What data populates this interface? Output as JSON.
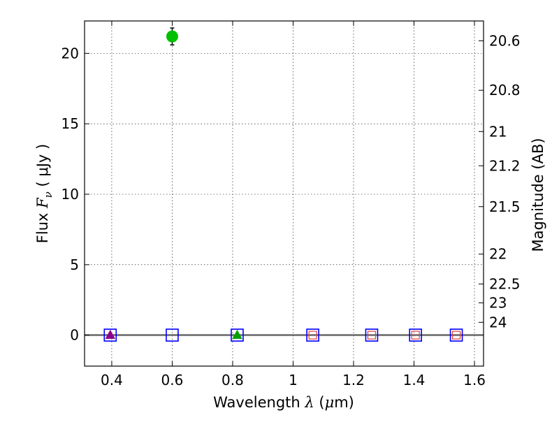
{
  "chart_data": {
    "type": "scatter",
    "title": "",
    "xlabel": {
      "prefix": "Wavelength  ",
      "symbol": "λ",
      "unit_open": " (",
      "unit_mu": "μ",
      "unit_rest": "m)"
    },
    "ylabel": {
      "prefix": "Flux  ",
      "symbol": "F",
      "subscript": "ν",
      "unit": "  ( μJy )"
    },
    "y2label": "Magnitude (AB)",
    "xlim": [
      0.31,
      1.63
    ],
    "ylim": [
      -2.2,
      22.3
    ],
    "grid": true,
    "x_ticks": [
      {
        "value": 0.4,
        "label": "0.4"
      },
      {
        "value": 0.6,
        "label": "0.6"
      },
      {
        "value": 0.8,
        "label": "0.8"
      },
      {
        "value": 1.0,
        "label": "1"
      },
      {
        "value": 1.2,
        "label": "1.2"
      },
      {
        "value": 1.4,
        "label": "1.4"
      },
      {
        "value": 1.6,
        "label": "1.6"
      }
    ],
    "y_ticks": [
      {
        "value": 0,
        "label": "0"
      },
      {
        "value": 5,
        "label": "5"
      },
      {
        "value": 10,
        "label": "10"
      },
      {
        "value": 15,
        "label": "15"
      },
      {
        "value": 20,
        "label": "20"
      }
    ],
    "y2_ticks": [
      {
        "label": "20.6",
        "flux": 20.89
      },
      {
        "label": "20.8",
        "flux": 17.38
      },
      {
        "label": "21",
        "flux": 14.45
      },
      {
        "label": "21.2",
        "flux": 12.02
      },
      {
        "label": "21.5",
        "flux": 9.12
      },
      {
        "label": "22",
        "flux": 5.75
      },
      {
        "label": "22.5",
        "flux": 3.63
      },
      {
        "label": "23",
        "flux": 2.29
      },
      {
        "label": "24",
        "flux": 0.91
      }
    ],
    "zero_line": {
      "y": 0,
      "color": "#808080"
    },
    "series": [
      {
        "name": "detection",
        "marker": "circle",
        "color": "#00c000",
        "points": [
          {
            "x": 0.6,
            "y": 21.2,
            "yerr": 0.6
          }
        ]
      },
      {
        "name": "upper-limit-boxes",
        "marker": "open-square",
        "color": "#0000ff",
        "points": [
          {
            "x": 0.395,
            "y": 0
          },
          {
            "x": 0.6,
            "y": 0
          },
          {
            "x": 0.815,
            "y": 0
          },
          {
            "x": 1.065,
            "y": 0
          },
          {
            "x": 1.26,
            "y": 0
          },
          {
            "x": 1.405,
            "y": 0
          },
          {
            "x": 1.54,
            "y": 0
          }
        ]
      },
      {
        "name": "small-red-squares",
        "marker": "small-open-square",
        "color": "#e04040",
        "points": [
          {
            "x": 1.065,
            "y": 0
          },
          {
            "x": 1.26,
            "y": 0
          },
          {
            "x": 1.405,
            "y": 0
          },
          {
            "x": 1.54,
            "y": 0
          }
        ]
      },
      {
        "name": "triangle-purple",
        "marker": "triangle",
        "color": "#8b008b",
        "points": [
          {
            "x": 0.395,
            "y": 0
          }
        ]
      },
      {
        "name": "triangle-green",
        "marker": "triangle",
        "color": "#00a000",
        "points": [
          {
            "x": 0.815,
            "y": 0
          }
        ]
      }
    ]
  }
}
